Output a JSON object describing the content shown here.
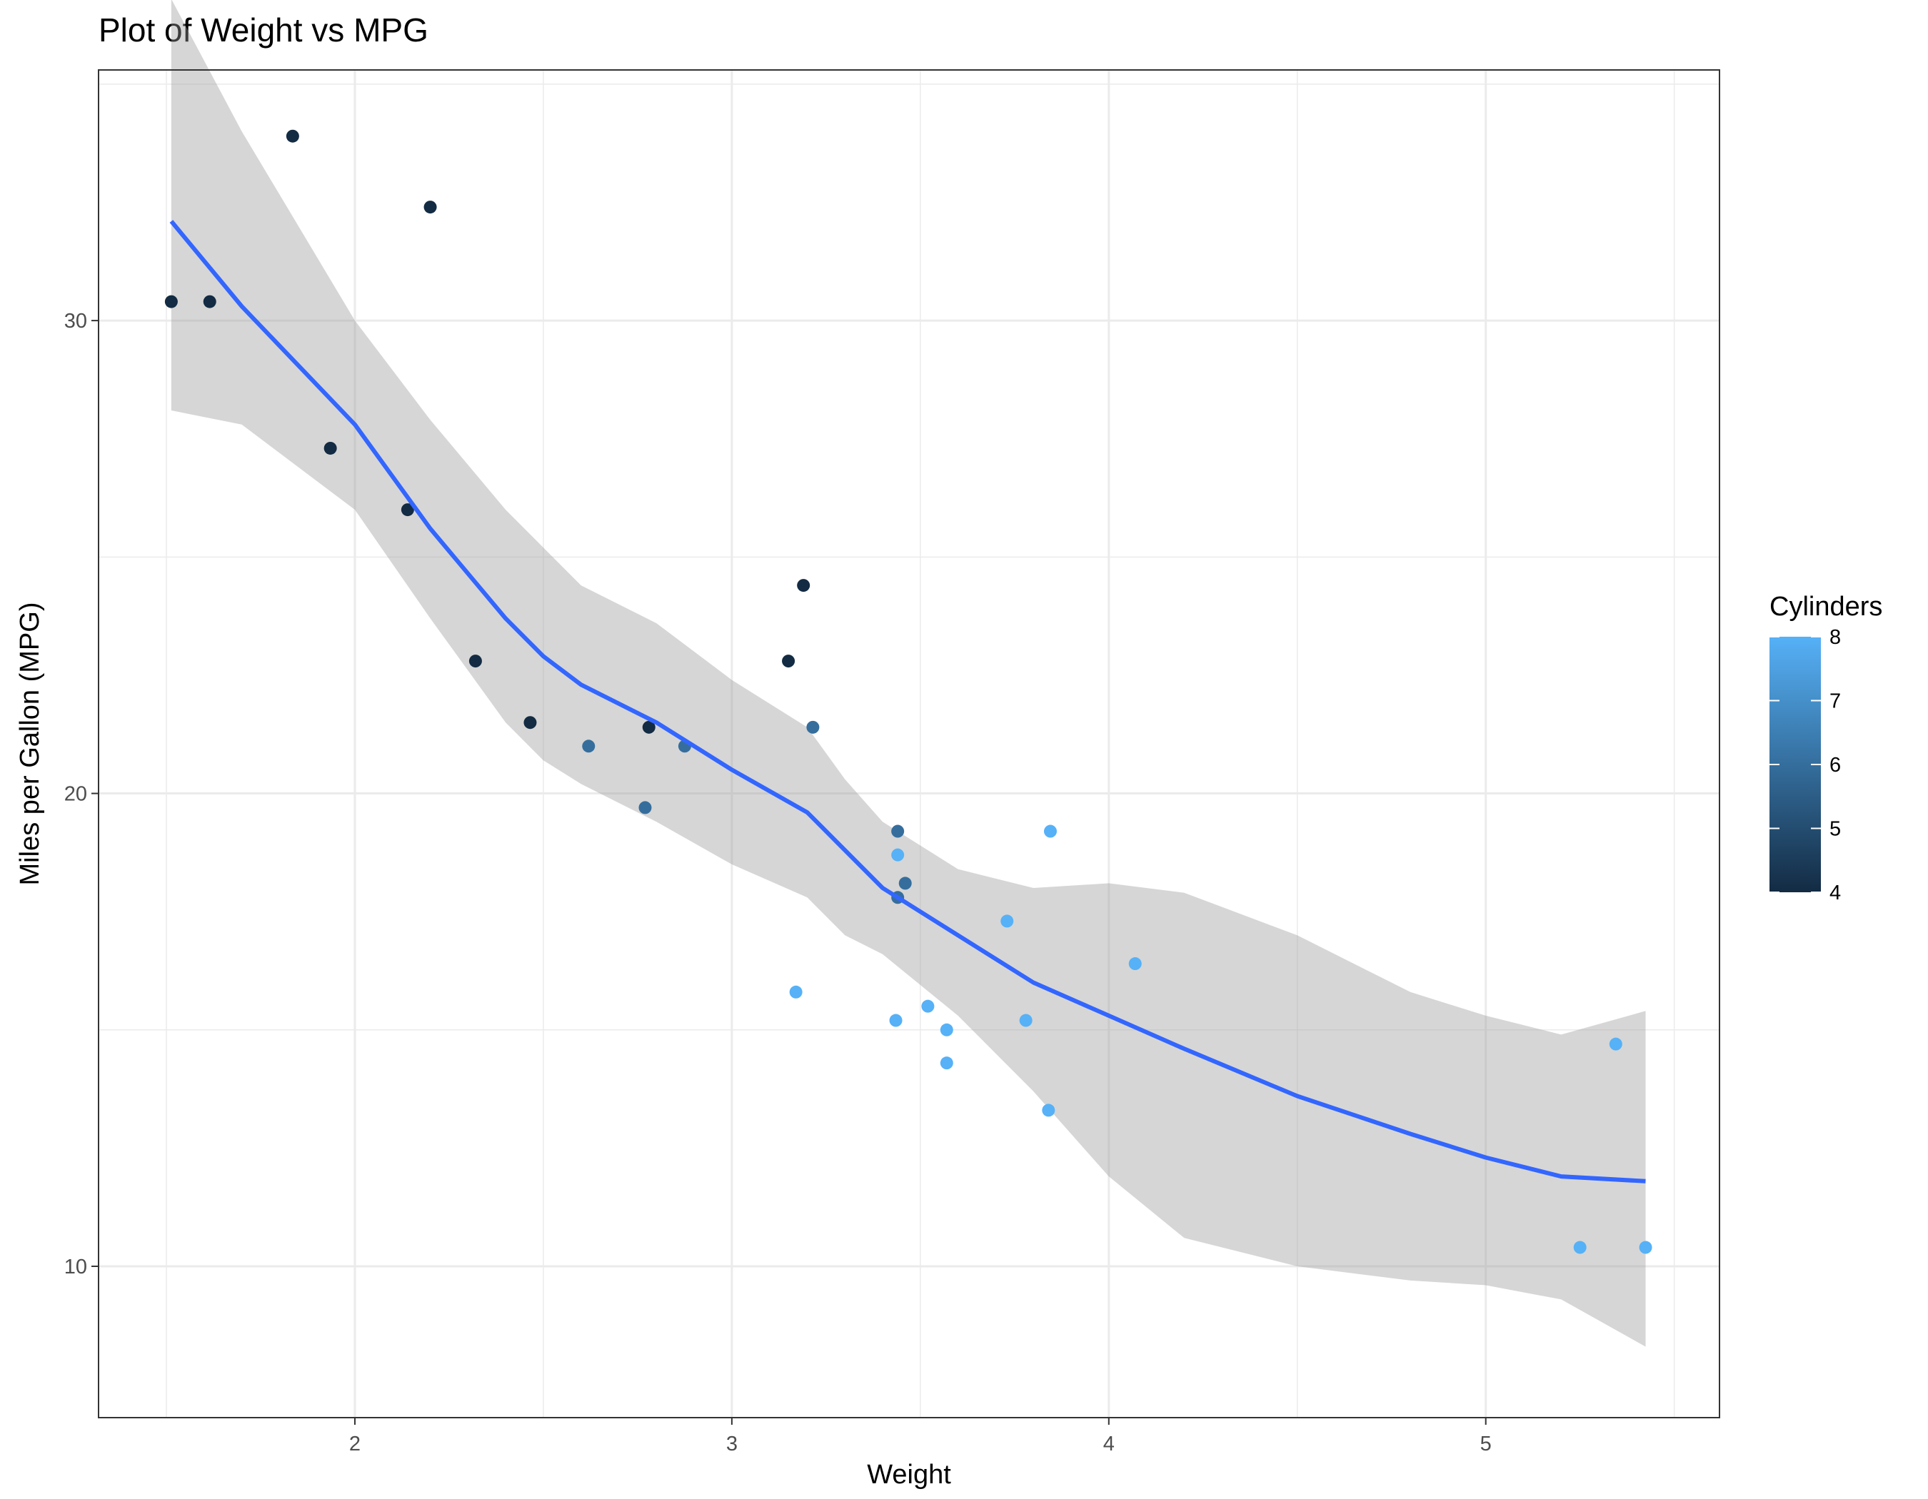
{
  "chart_data": {
    "type": "scatter",
    "title": "Plot of Weight vs MPG",
    "xlabel": "Weight",
    "ylabel": "Miles per Gallon (MPG)",
    "xlim": [
      1.32,
      5.62
    ],
    "ylim": [
      6.8,
      35.3
    ],
    "x_ticks": [
      2,
      3,
      4,
      5
    ],
    "x_tick_labels": [
      "2",
      "3",
      "4",
      "5"
    ],
    "y_ticks": [
      10,
      20,
      30
    ],
    "y_tick_labels": [
      "10",
      "20",
      "30"
    ],
    "x_minor_grid": [
      1.5,
      2.5,
      3.5,
      4.5,
      5.5
    ],
    "y_minor_grid": [
      15,
      25,
      35
    ],
    "grid": true,
    "theme": "bw",
    "legend": {
      "title": "Cylinders",
      "position": "right",
      "type": "colorbar",
      "range": [
        4,
        8
      ],
      "ticks": [
        4,
        5,
        6,
        7,
        8
      ],
      "tick_labels": [
        "4",
        "5",
        "6",
        "7",
        "8"
      ],
      "low_color": "#132B43",
      "high_color": "#56B1F7"
    },
    "points": [
      {
        "x": 2.62,
        "y": 21.0,
        "cyl": 6
      },
      {
        "x": 2.875,
        "y": 21.0,
        "cyl": 6
      },
      {
        "x": 2.32,
        "y": 22.8,
        "cyl": 4
      },
      {
        "x": 3.215,
        "y": 21.4,
        "cyl": 6
      },
      {
        "x": 3.44,
        "y": 18.7,
        "cyl": 8
      },
      {
        "x": 3.46,
        "y": 18.1,
        "cyl": 6
      },
      {
        "x": 3.57,
        "y": 14.3,
        "cyl": 8
      },
      {
        "x": 3.19,
        "y": 24.4,
        "cyl": 4
      },
      {
        "x": 3.15,
        "y": 22.8,
        "cyl": 4
      },
      {
        "x": 3.44,
        "y": 19.2,
        "cyl": 6
      },
      {
        "x": 3.44,
        "y": 17.8,
        "cyl": 6
      },
      {
        "x": 4.07,
        "y": 16.4,
        "cyl": 8
      },
      {
        "x": 3.73,
        "y": 17.3,
        "cyl": 8
      },
      {
        "x": 3.78,
        "y": 15.2,
        "cyl": 8
      },
      {
        "x": 5.25,
        "y": 10.4,
        "cyl": 8
      },
      {
        "x": 5.424,
        "y": 10.4,
        "cyl": 8
      },
      {
        "x": 5.345,
        "y": 14.7,
        "cyl": 8
      },
      {
        "x": 2.2,
        "y": 32.4,
        "cyl": 4
      },
      {
        "x": 1.615,
        "y": 30.4,
        "cyl": 4
      },
      {
        "x": 1.835,
        "y": 33.9,
        "cyl": 4
      },
      {
        "x": 2.465,
        "y": 21.5,
        "cyl": 4
      },
      {
        "x": 3.52,
        "y": 15.5,
        "cyl": 8
      },
      {
        "x": 3.435,
        "y": 15.2,
        "cyl": 8
      },
      {
        "x": 3.84,
        "y": 13.3,
        "cyl": 8
      },
      {
        "x": 3.845,
        "y": 19.2,
        "cyl": 8
      },
      {
        "x": 1.935,
        "y": 27.3,
        "cyl": 4
      },
      {
        "x": 2.14,
        "y": 26.0,
        "cyl": 4
      },
      {
        "x": 1.513,
        "y": 30.4,
        "cyl": 4
      },
      {
        "x": 3.17,
        "y": 15.8,
        "cyl": 8
      },
      {
        "x": 2.77,
        "y": 19.7,
        "cyl": 6
      },
      {
        "x": 3.57,
        "y": 15.0,
        "cyl": 8
      },
      {
        "x": 2.78,
        "y": 21.4,
        "cyl": 4
      }
    ],
    "smooth_line": {
      "color": "#3366FF",
      "x": [
        1.513,
        1.7,
        2.0,
        2.2,
        2.4,
        2.5,
        2.6,
        2.8,
        3.0,
        3.2,
        3.3,
        3.4,
        3.6,
        3.8,
        4.0,
        4.2,
        4.5,
        4.8,
        5.0,
        5.2,
        5.424
      ],
      "y": [
        32.1,
        30.3,
        27.8,
        25.6,
        23.7,
        22.9,
        22.3,
        21.5,
        20.5,
        19.6,
        18.8,
        18.0,
        17.0,
        16.0,
        15.3,
        14.6,
        13.6,
        12.8,
        12.3,
        11.9,
        11.8
      ],
      "upper": [
        36.8,
        34.0,
        30.0,
        27.9,
        26.0,
        25.2,
        24.4,
        23.6,
        22.4,
        21.4,
        20.3,
        19.4,
        18.4,
        18.0,
        18.1,
        17.9,
        17.0,
        15.8,
        15.3,
        14.9,
        15.4
      ],
      "lower": [
        28.1,
        27.8,
        26.0,
        23.7,
        21.5,
        20.7,
        20.2,
        19.4,
        18.5,
        17.8,
        17.0,
        16.6,
        15.3,
        13.7,
        11.9,
        10.6,
        10.0,
        9.7,
        9.6,
        9.3,
        8.3
      ]
    }
  }
}
